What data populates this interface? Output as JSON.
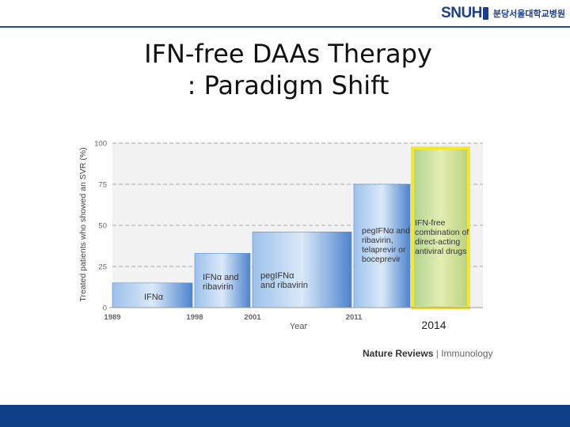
{
  "header": {
    "logo_text": "SNUH",
    "hospital_name": "분당서울대학교병원"
  },
  "slide": {
    "title_line1": "IFN-free DAAs Therapy",
    "title_line2": ": Paradigm Shift"
  },
  "source": {
    "publisher": "Nature Reviews",
    "separator": "|",
    "journal": "Immunology"
  },
  "colors": {
    "bar_blue": "#5f92d4",
    "bar_highlight": "#c9df98",
    "highlight_border": "#f4e82a",
    "bottom_bar": "#0f3f86"
  },
  "chart_data": {
    "type": "bar",
    "ylabel": "Treated patients who showed an SVR (%)",
    "xlabel": "Year",
    "ylim": [
      0,
      100
    ],
    "yticks": [
      0,
      25,
      50,
      75,
      100
    ],
    "xticks": [
      "1989",
      "1998",
      "2001",
      "2011"
    ],
    "grid": true,
    "annotation_year": "2014",
    "bars": [
      {
        "start": 1989,
        "end": 1998,
        "value": 15,
        "label_lines": [
          "IFNα"
        ],
        "highlight": false
      },
      {
        "start": 1998,
        "end": 2001,
        "value": 33,
        "label_lines": [
          "IFNα and",
          "ribavirin"
        ],
        "highlight": false
      },
      {
        "start": 2001,
        "end": 2011,
        "value": 46,
        "label_lines": [
          "pegIFNα",
          "and ribavirin"
        ],
        "highlight": false
      },
      {
        "start": 2011,
        "end": 2014,
        "value": 75,
        "label_lines": [
          "pegIFNα and",
          "ribavirin,",
          "telaprevir or",
          "boceprevir"
        ],
        "highlight": false
      },
      {
        "start": 2014,
        "end": 2017,
        "value": 97,
        "label_lines": [
          "IFN-free",
          "combination of",
          "direct-acting",
          "antiviral drugs"
        ],
        "highlight": true
      }
    ]
  }
}
